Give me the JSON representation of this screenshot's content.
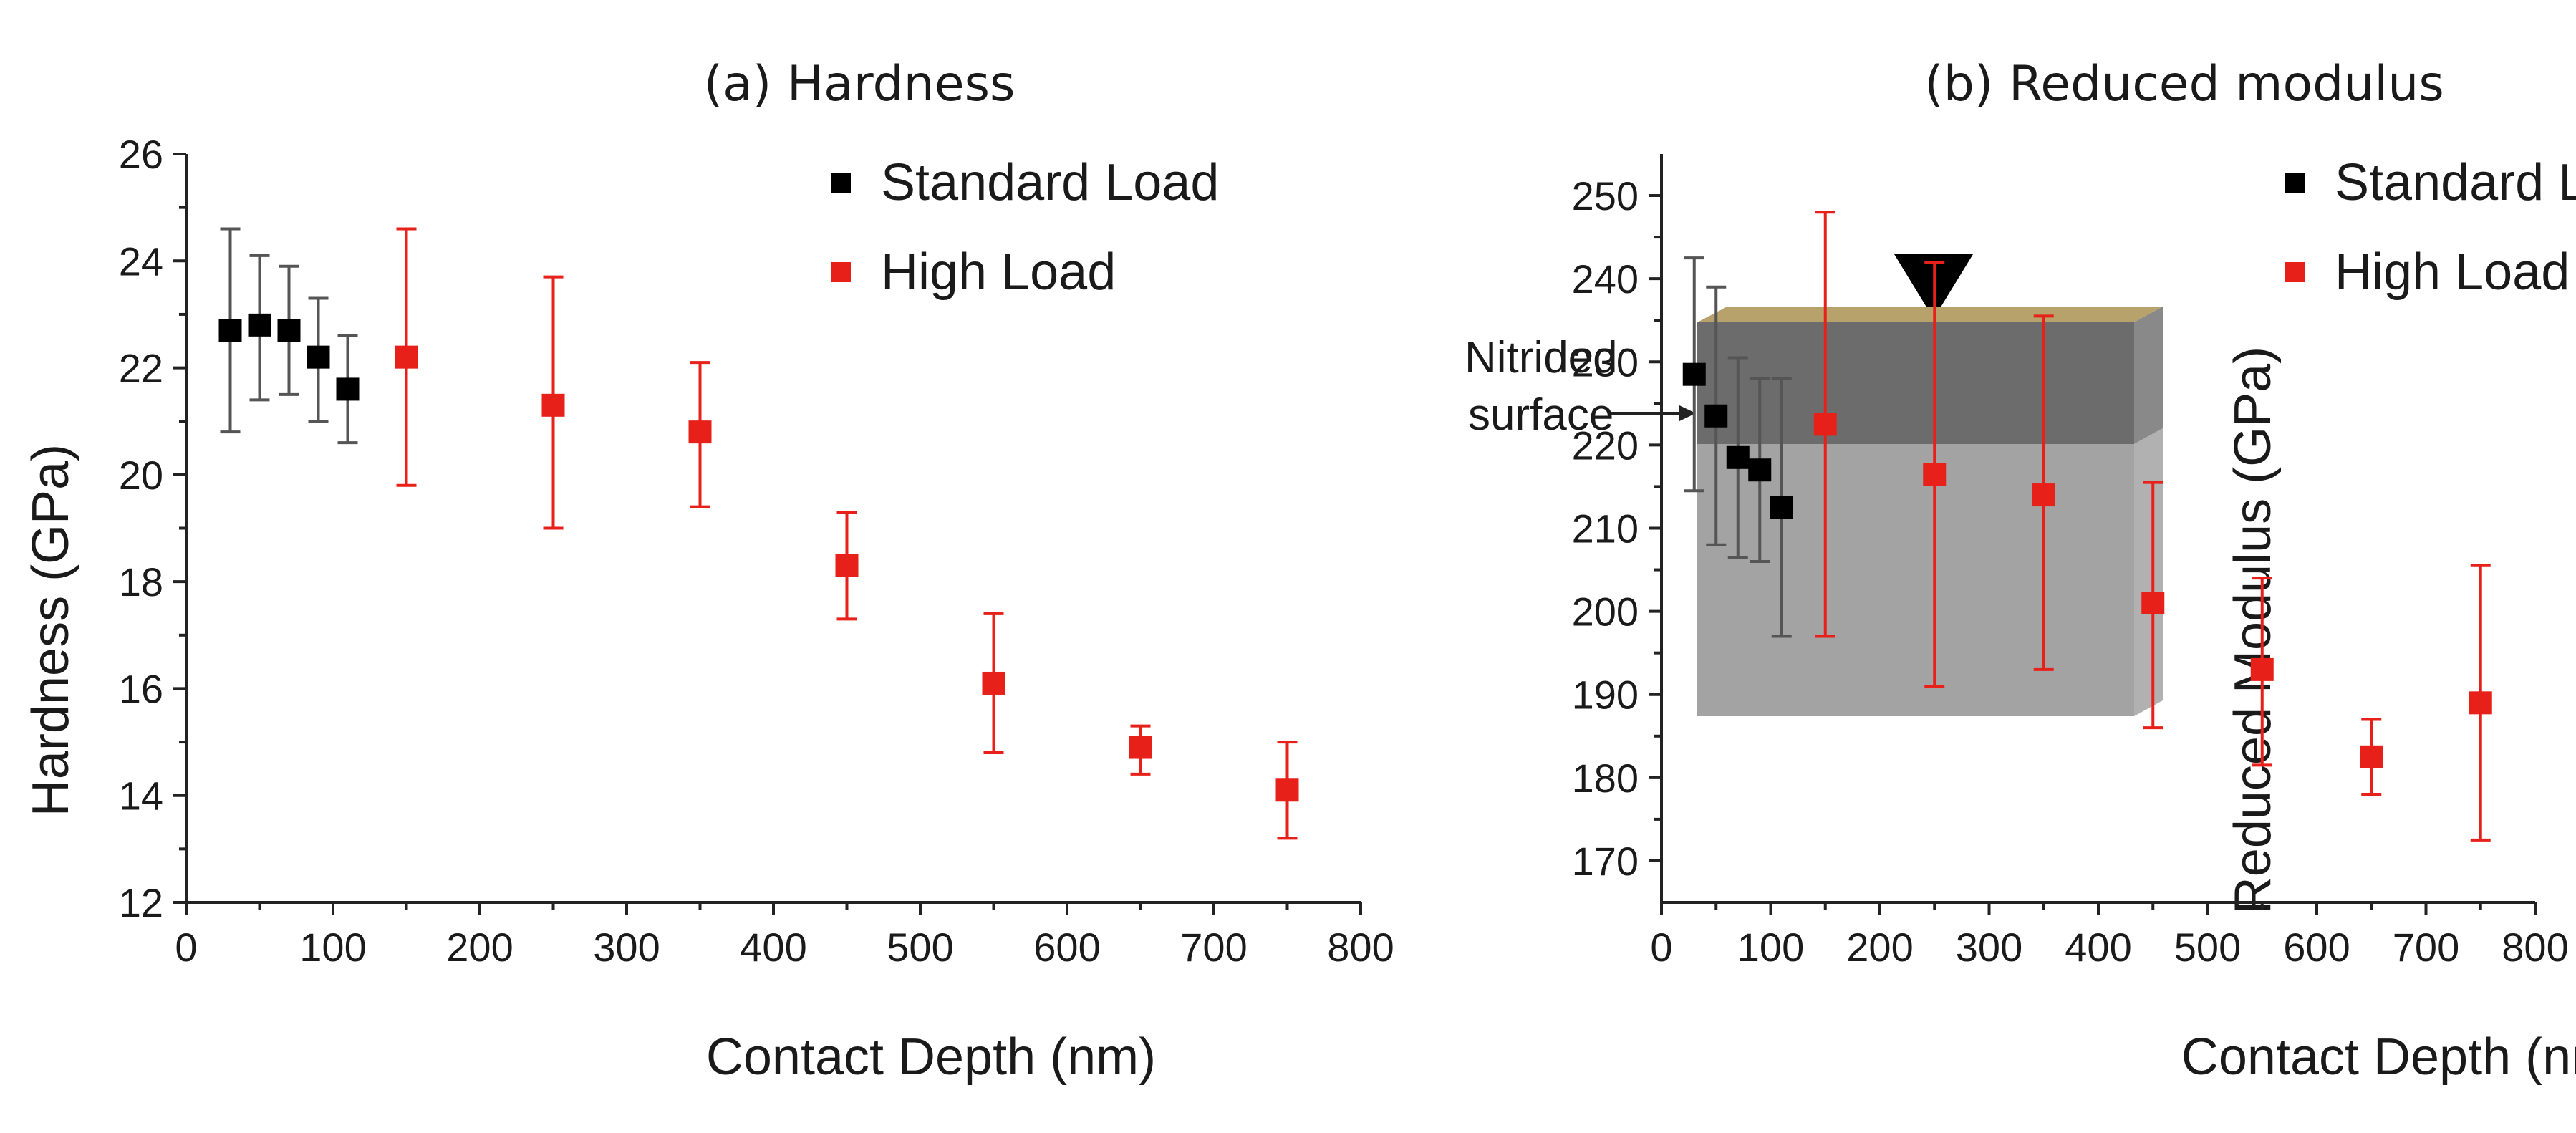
{
  "chart_data": [
    {
      "type": "scatter",
      "title": "(a) Hardness",
      "xlabel": "Contact Depth (nm)",
      "ylabel": "Hardness (GPa)",
      "xlim": [
        0,
        800
      ],
      "ylim": [
        12,
        26
      ],
      "xticks": [
        0,
        100,
        200,
        300,
        400,
        500,
        600,
        700,
        800
      ],
      "yticks": [
        12,
        14,
        16,
        18,
        20,
        22,
        24,
        26
      ],
      "legend_position": "top-right",
      "grid": false,
      "series": [
        {
          "name": "Standard Load",
          "color": "#000000",
          "x": [
            30,
            50,
            70,
            90,
            110
          ],
          "y": [
            22.7,
            22.8,
            22.7,
            22.2,
            21.6
          ],
          "err_low": [
            20.8,
            21.4,
            21.5,
            21.0,
            20.6
          ],
          "err_high": [
            24.6,
            24.1,
            23.9,
            23.3,
            22.6
          ]
        },
        {
          "name": "High Load",
          "color": "#e8201a",
          "x": [
            150,
            250,
            350,
            450,
            550,
            650,
            750
          ],
          "y": [
            22.2,
            21.3,
            20.8,
            18.3,
            16.1,
            14.9,
            14.1
          ],
          "err_low": [
            19.8,
            19.0,
            19.4,
            17.3,
            14.8,
            14.4,
            13.2
          ],
          "err_high": [
            24.6,
            23.7,
            22.1,
            19.3,
            17.4,
            15.3,
            15.0
          ]
        }
      ],
      "inset": {
        "label_line1": "Nitrided",
        "label_line2": "surface",
        "indenter_color": "#000000",
        "top_layer_color": "#b6a26a",
        "nitrided_color": "#6c6c6c",
        "substrate_color": "#a3a3a3"
      }
    },
    {
      "type": "scatter",
      "title": "(b) Reduced modulus",
      "xlabel": "Contact Depth (nm)",
      "ylabel": "Reduced Modulus (GPa)",
      "xlim": [
        0,
        800
      ],
      "ylim": [
        165,
        255
      ],
      "xticks": [
        0,
        100,
        200,
        300,
        400,
        500,
        600,
        700,
        800
      ],
      "yticks": [
        170,
        180,
        190,
        200,
        210,
        220,
        230,
        240,
        250
      ],
      "legend_position": "top-right",
      "grid": false,
      "series": [
        {
          "name": "Standard Load",
          "color": "#000000",
          "x": [
            30,
            50,
            70,
            90,
            110
          ],
          "y": [
            228.5,
            223.5,
            218.5,
            217.0,
            212.5
          ],
          "err_low": [
            214.5,
            208.0,
            206.5,
            206.0,
            197.0
          ],
          "err_high": [
            242.5,
            239.0,
            230.5,
            228.0,
            228.0
          ]
        },
        {
          "name": "High Load",
          "color": "#e8201a",
          "x": [
            150,
            250,
            350,
            450,
            550,
            650,
            750
          ],
          "y": [
            222.5,
            216.5,
            214.0,
            201.0,
            193.0,
            182.5,
            189.0
          ],
          "err_low": [
            197.0,
            191.0,
            193.0,
            186.0,
            181.5,
            178.0,
            172.5
          ],
          "err_high": [
            248.0,
            242.0,
            235.5,
            215.5,
            204.0,
            187.0,
            205.5
          ]
        }
      ]
    }
  ]
}
